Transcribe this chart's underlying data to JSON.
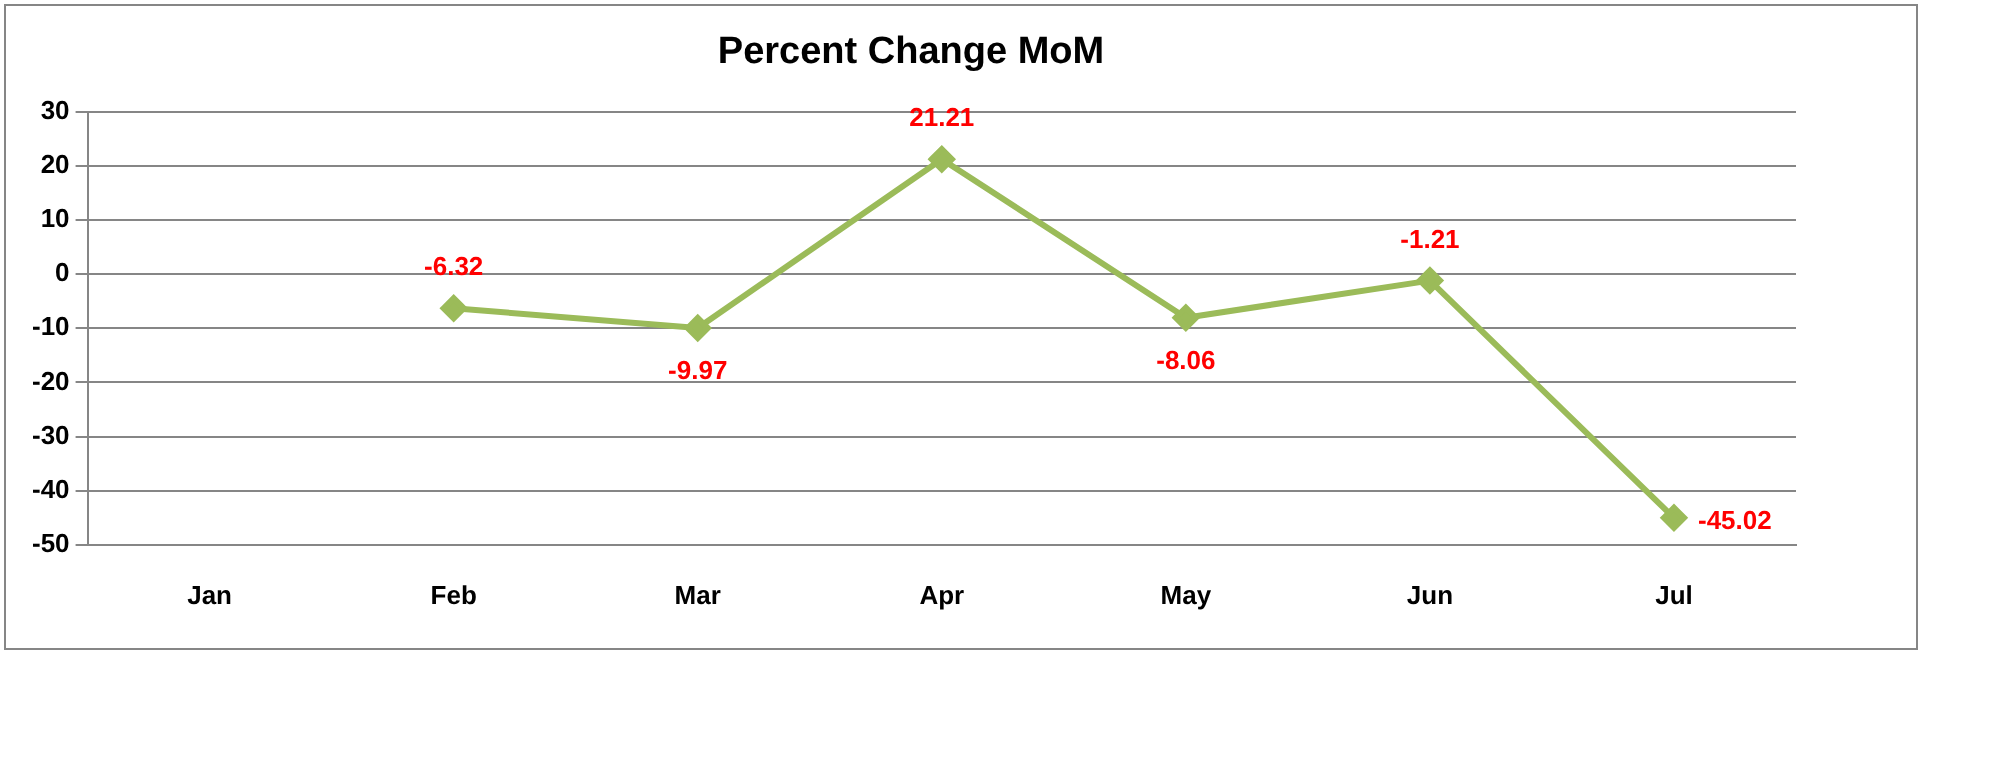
{
  "chart_data": {
    "type": "line",
    "title": "Percent Change MoM",
    "categories": [
      "Jan",
      "Feb",
      "Mar",
      "Apr",
      "May",
      "Jun",
      "Jul"
    ],
    "series": [
      {
        "color": "#9bbb59",
        "values": [
          null,
          -6.32,
          -9.97,
          21.21,
          -8.06,
          -1.21,
          -45.02
        ]
      }
    ],
    "ylim": [
      -50,
      30
    ],
    "yticks": [
      -50,
      -40,
      -30,
      -20,
      -10,
      0,
      10,
      20,
      30
    ],
    "grid": "y",
    "legend": false,
    "marker": "diamond",
    "line_style": "solid",
    "data_labels": true
  }
}
